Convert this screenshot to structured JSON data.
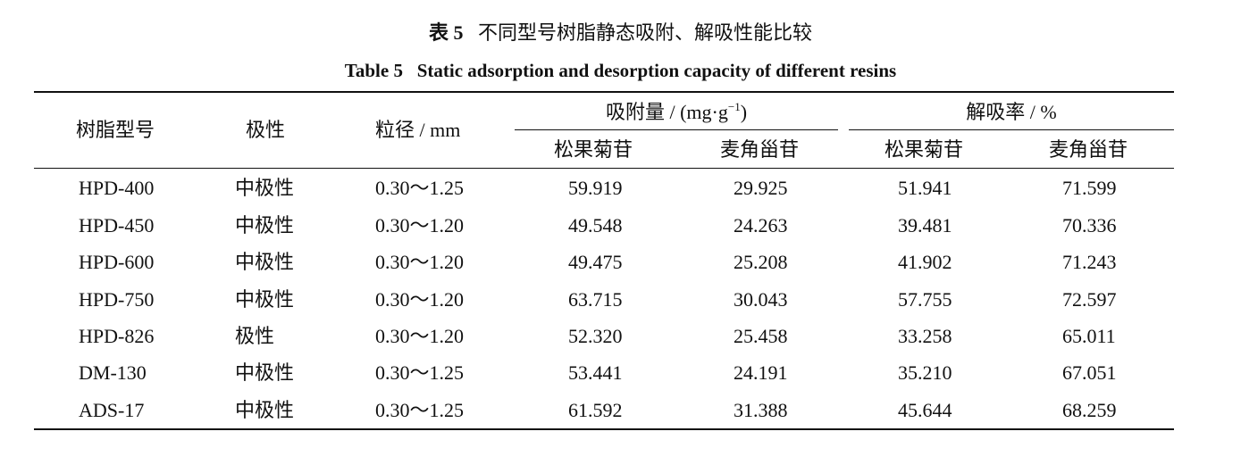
{
  "caption": {
    "zh_label": "表 5",
    "zh_title": "不同型号树脂静态吸附、解吸性能比较",
    "en": "Table 5   Static adsorption and desorption capacity of different resins"
  },
  "headers": {
    "model": "树脂型号",
    "polarity": "极性",
    "size": "粒径 / mm",
    "adsorption_prefix": "吸附量 / (mg·g",
    "adsorption_exp": "−1",
    "adsorption_suffix": ")",
    "desorption": "解吸率 / %",
    "sub": [
      "松果菊苷",
      "麦角甾苷",
      "松果菊苷",
      "麦角甾苷"
    ]
  },
  "rows": [
    [
      "HPD-400",
      "中极性",
      "0.30～1.25",
      "59.919",
      "29.925",
      "51.941",
      "71.599"
    ],
    [
      "HPD-450",
      "中极性",
      "0.30～1.20",
      "49.548",
      "24.263",
      "39.481",
      "70.336"
    ],
    [
      "HPD-600",
      "中极性",
      "0.30～1.20",
      "49.475",
      "25.208",
      "41.902",
      "71.243"
    ],
    [
      "HPD-750",
      "中极性",
      "0.30～1.20",
      "63.715",
      "30.043",
      "57.755",
      "72.597"
    ],
    [
      "HPD-826",
      "极性",
      "0.30～1.20",
      "52.320",
      "25.458",
      "33.258",
      "65.011"
    ],
    [
      "DM-130",
      "中极性",
      "0.30～1.25",
      "53.441",
      "24.191",
      "35.210",
      "67.051"
    ],
    [
      "ADS-17",
      "中极性",
      "0.30～1.25",
      "61.592",
      "31.388",
      "45.644",
      "68.259"
    ]
  ]
}
